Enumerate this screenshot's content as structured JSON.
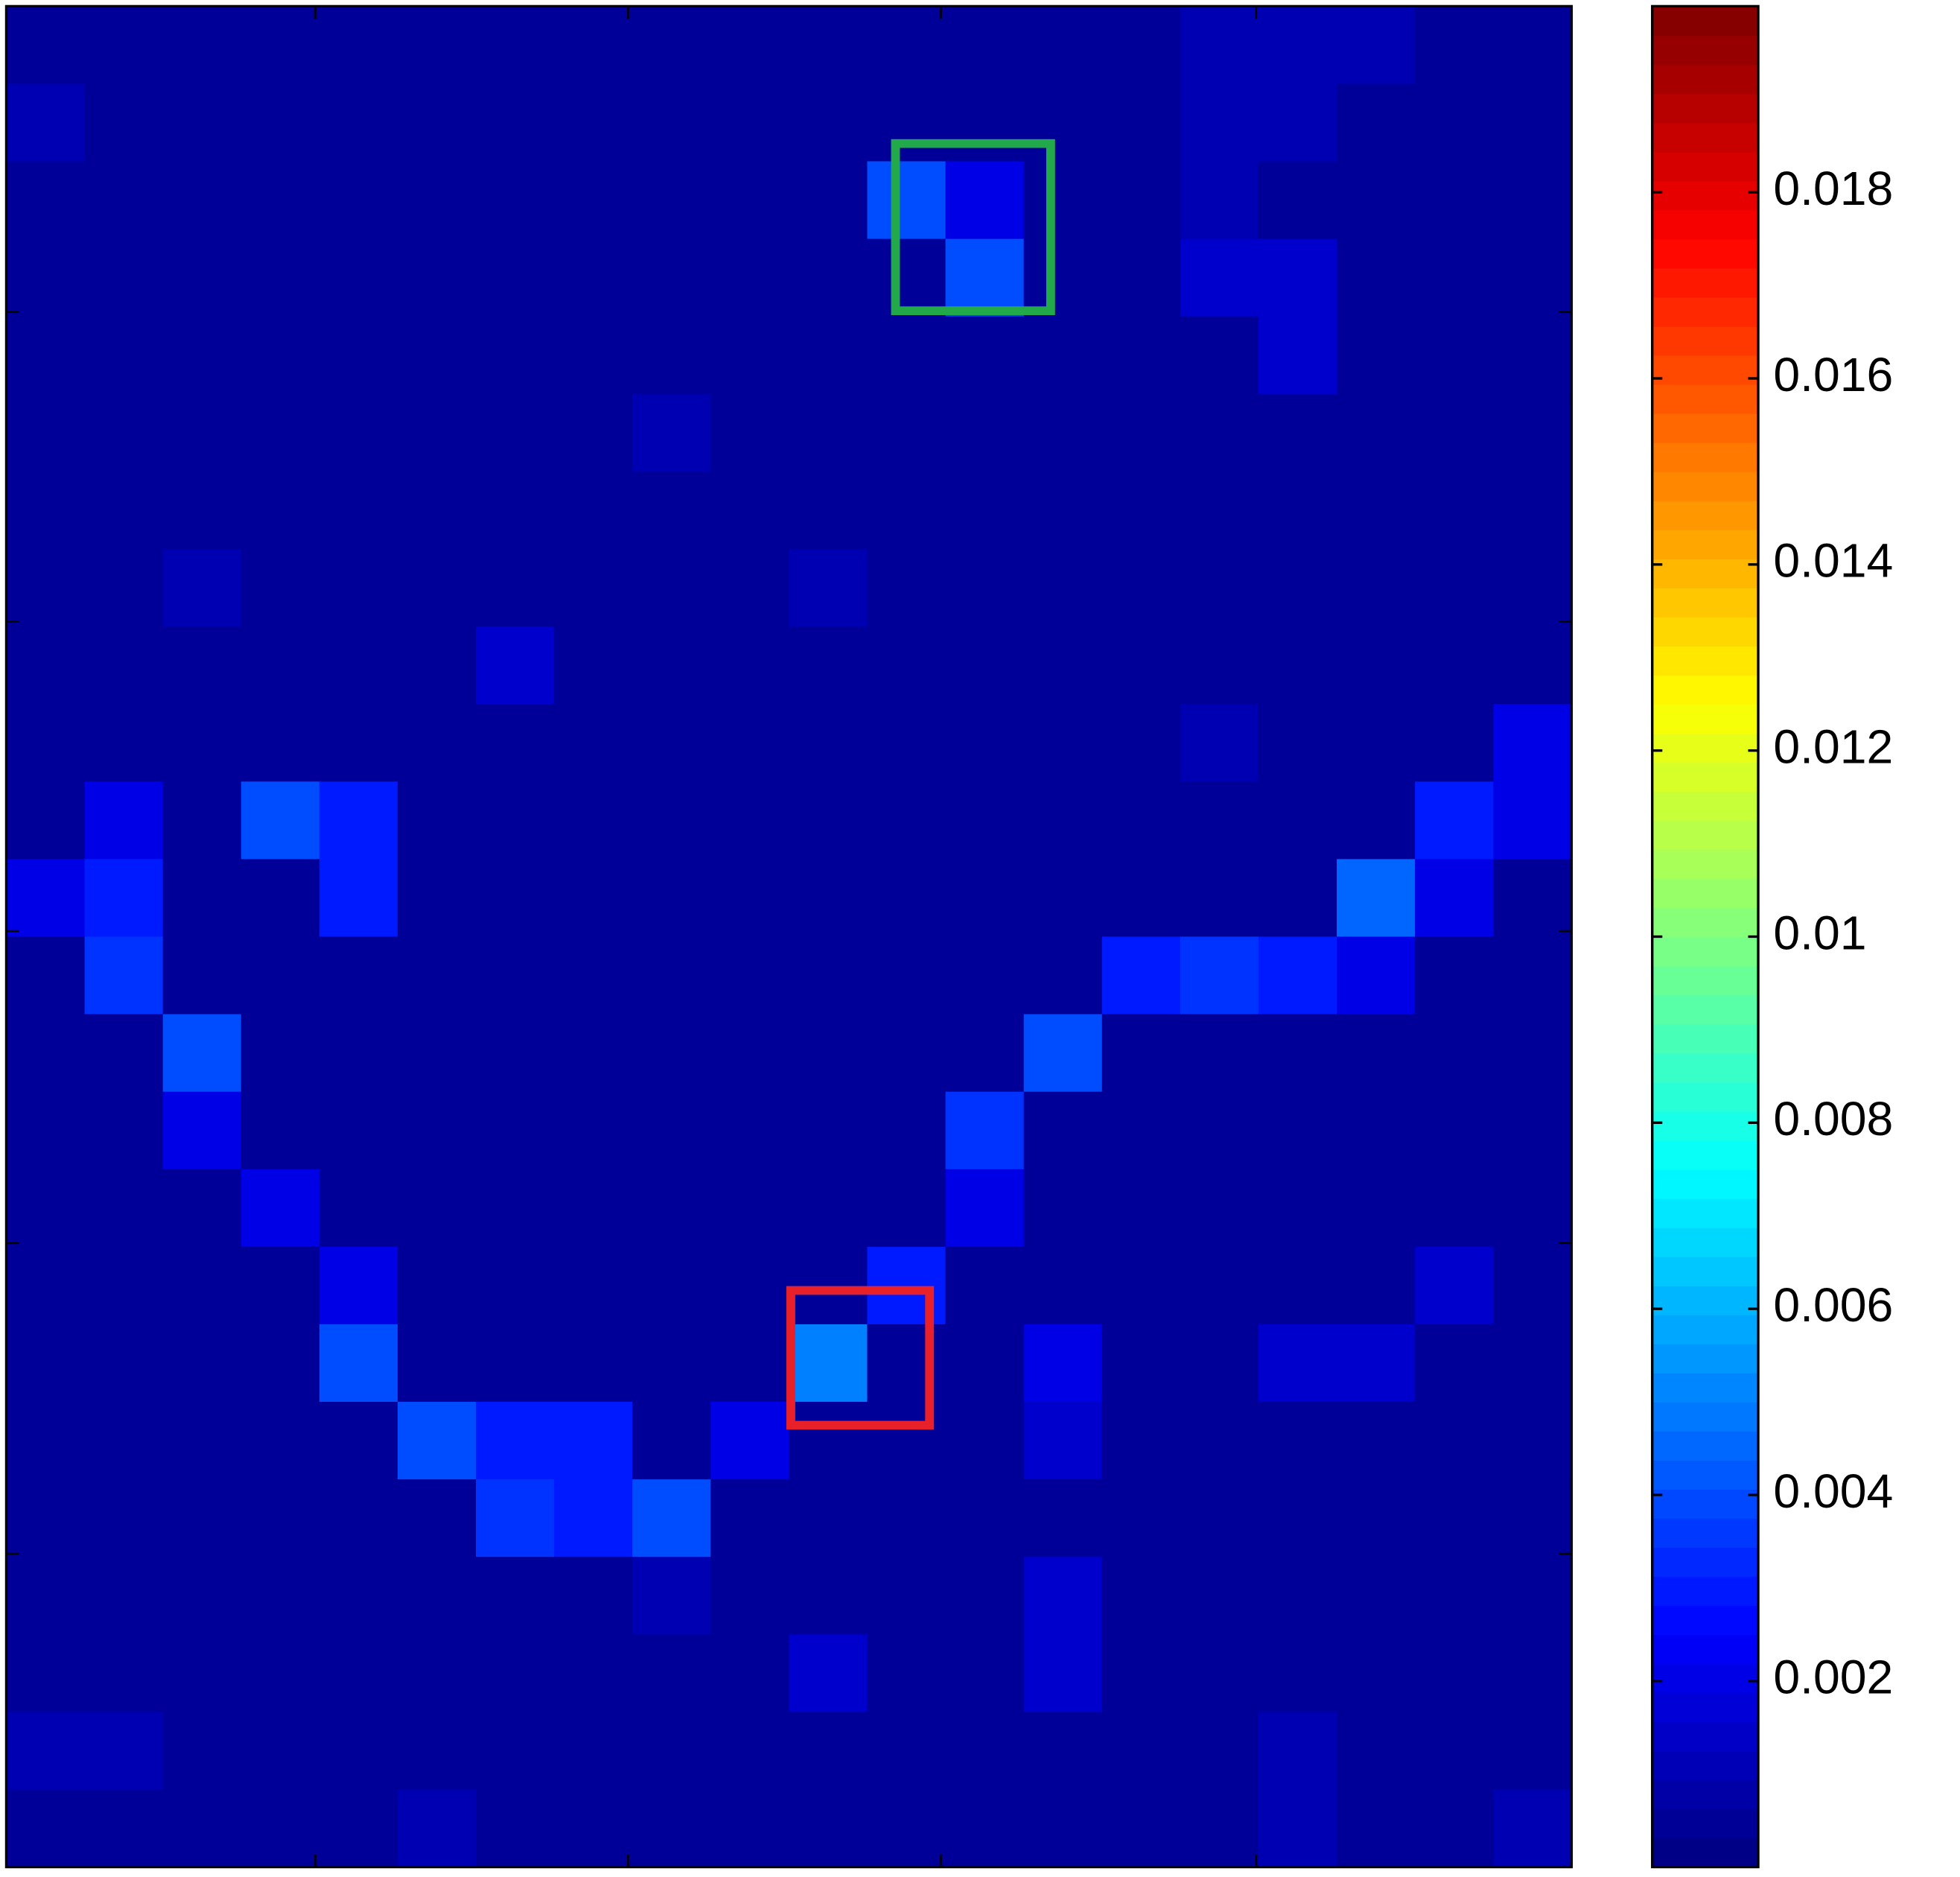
{
  "chart_data": {
    "type": "heatmap",
    "colormap": "jet",
    "clim": [
      0,
      0.02
    ],
    "colorbar_ticks": [
      0.002,
      0.004,
      0.006,
      0.008,
      0.01,
      0.012,
      0.014,
      0.016,
      0.018
    ],
    "z": [
      [
        0.0005,
        0.0005,
        0.0005,
        0.0005,
        0.0005,
        0.0005,
        0.0005,
        0.0005,
        0.0005,
        0.0005,
        0.0005,
        0.0005,
        0.0005,
        0.0005,
        0.0005,
        0.001,
        0.001,
        0.001,
        0.0005,
        0.0005
      ],
      [
        0.001,
        0.0005,
        0.0005,
        0.0005,
        0.0005,
        0.0005,
        0.0005,
        0.0005,
        0.0005,
        0.0005,
        0.0005,
        0.0005,
        0.0005,
        0.0005,
        0.0005,
        0.001,
        0.001,
        0.0005,
        0.0005,
        0.0005
      ],
      [
        0.0005,
        0.0005,
        0.0005,
        0.0005,
        0.0005,
        0.0005,
        0.0005,
        0.0005,
        0.0005,
        0.0005,
        0.0005,
        0.004,
        0.002,
        0.0005,
        0.0005,
        0.001,
        0.0005,
        0.0005,
        0.0005,
        0.0005
      ],
      [
        0.0005,
        0.0005,
        0.0005,
        0.0005,
        0.0005,
        0.0005,
        0.0005,
        0.0005,
        0.0005,
        0.0005,
        0.0005,
        0.0005,
        0.004,
        0.0005,
        0.0005,
        0.0015,
        0.0015,
        0.0005,
        0.0005,
        0.0005
      ],
      [
        0.0005,
        0.0005,
        0.0005,
        0.0005,
        0.0005,
        0.0005,
        0.0005,
        0.0005,
        0.0005,
        0.0005,
        0.0005,
        0.0005,
        0.0005,
        0.0005,
        0.0005,
        0.0005,
        0.0015,
        0.0005,
        0.0005,
        0.0005
      ],
      [
        0.0005,
        0.0005,
        0.0005,
        0.0005,
        0.0005,
        0.0005,
        0.0005,
        0.0005,
        0.001,
        0.0005,
        0.0005,
        0.0005,
        0.0005,
        0.0005,
        0.0005,
        0.0005,
        0.0005,
        0.0005,
        0.0005,
        0.0005
      ],
      [
        0.0005,
        0.0005,
        0.0005,
        0.0005,
        0.0005,
        0.0005,
        0.0005,
        0.0005,
        0.0005,
        0.0005,
        0.0005,
        0.0005,
        0.0005,
        0.0005,
        0.0005,
        0.0005,
        0.0005,
        0.0005,
        0.0005,
        0.0005
      ],
      [
        0.0005,
        0.0005,
        0.001,
        0.0005,
        0.0005,
        0.0005,
        0.0005,
        0.0005,
        0.0005,
        0.0005,
        0.001,
        0.0005,
        0.0005,
        0.0005,
        0.0005,
        0.0005,
        0.0005,
        0.0005,
        0.0005,
        0.0005
      ],
      [
        0.0005,
        0.0005,
        0.0005,
        0.0005,
        0.0005,
        0.0005,
        0.0015,
        0.0005,
        0.0005,
        0.0005,
        0.0005,
        0.0005,
        0.0005,
        0.0005,
        0.0005,
        0.0005,
        0.0005,
        0.0005,
        0.0005,
        0.0005
      ],
      [
        0.0005,
        0.0005,
        0.0005,
        0.0005,
        0.0005,
        0.0005,
        0.0005,
        0.0005,
        0.0005,
        0.0005,
        0.0005,
        0.0005,
        0.0005,
        0.0005,
        0.0005,
        0.001,
        0.0005,
        0.0005,
        0.0005,
        0.002
      ],
      [
        0.0005,
        0.002,
        0.0005,
        0.004,
        0.003,
        0.0005,
        0.0005,
        0.0005,
        0.0005,
        0.0005,
        0.0005,
        0.0005,
        0.0005,
        0.0005,
        0.0005,
        0.0005,
        0.0005,
        0.0005,
        0.003,
        0.002
      ],
      [
        0.002,
        0.003,
        0.0005,
        0.0005,
        0.003,
        0.0005,
        0.0005,
        0.0005,
        0.0005,
        0.0005,
        0.0005,
        0.0005,
        0.0005,
        0.0005,
        0.0005,
        0.0005,
        0.0005,
        0.0045,
        0.002,
        0.0005
      ],
      [
        0.0005,
        0.0035,
        0.0005,
        0.0005,
        0.0005,
        0.0005,
        0.0005,
        0.0005,
        0.0005,
        0.0005,
        0.0005,
        0.0005,
        0.0005,
        0.0005,
        0.003,
        0.0035,
        0.003,
        0.002,
        0.0005,
        0.0005
      ],
      [
        0.0005,
        0.0005,
        0.004,
        0.0005,
        0.0005,
        0.0005,
        0.0005,
        0.0005,
        0.0005,
        0.0005,
        0.0005,
        0.0005,
        0.0005,
        0.004,
        0.0005,
        0.0005,
        0.0005,
        0.0005,
        0.0005,
        0.0005
      ],
      [
        0.0005,
        0.0005,
        0.002,
        0.0005,
        0.0005,
        0.0005,
        0.0005,
        0.0005,
        0.0005,
        0.0005,
        0.0005,
        0.0005,
        0.0035,
        0.0005,
        0.0005,
        0.0005,
        0.0005,
        0.0005,
        0.0005,
        0.0005
      ],
      [
        0.0005,
        0.0005,
        0.0005,
        0.002,
        0.0005,
        0.0005,
        0.0005,
        0.0005,
        0.0005,
        0.0005,
        0.0005,
        0.0005,
        0.002,
        0.0005,
        0.0005,
        0.0005,
        0.0005,
        0.0005,
        0.0005,
        0.0005
      ],
      [
        0.0005,
        0.0005,
        0.0005,
        0.0005,
        0.002,
        0.0005,
        0.0005,
        0.0005,
        0.0005,
        0.0005,
        0.0005,
        0.003,
        0.0005,
        0.0005,
        0.0005,
        0.0005,
        0.0005,
        0.0005,
        0.0015,
        0.0005
      ],
      [
        0.0005,
        0.0005,
        0.0005,
        0.0005,
        0.004,
        0.0005,
        0.0005,
        0.0005,
        0.0005,
        0.0005,
        0.005,
        0.0005,
        0.0005,
        0.002,
        0.0005,
        0.0005,
        0.0015,
        0.0015,
        0.0005,
        0.0005
      ],
      [
        0.0005,
        0.0005,
        0.0005,
        0.0005,
        0.0005,
        0.004,
        0.003,
        0.003,
        0.0005,
        0.002,
        0.0005,
        0.0005,
        0.0005,
        0.0015,
        0.0005,
        0.0005,
        0.0005,
        0.0005,
        0.0005,
        0.0005
      ],
      [
        0.0005,
        0.0005,
        0.0005,
        0.0005,
        0.0005,
        0.0005,
        0.0035,
        0.003,
        0.004,
        0.0005,
        0.0005,
        0.0005,
        0.0005,
        0.0005,
        0.0005,
        0.0005,
        0.0005,
        0.0005,
        0.0005,
        0.0005
      ],
      [
        0.0005,
        0.0005,
        0.0005,
        0.0005,
        0.0005,
        0.0005,
        0.0005,
        0.0005,
        0.001,
        0.0005,
        0.0005,
        0.0005,
        0.0005,
        0.0015,
        0.0005,
        0.0005,
        0.0005,
        0.0005,
        0.0005,
        0.0005
      ],
      [
        0.0005,
        0.0005,
        0.0005,
        0.0005,
        0.0005,
        0.0005,
        0.0005,
        0.0005,
        0.0005,
        0.0005,
        0.0015,
        0.0005,
        0.0005,
        0.0015,
        0.0005,
        0.0005,
        0.0005,
        0.0005,
        0.0005,
        0.0005
      ],
      [
        0.001,
        0.001,
        0.0005,
        0.0005,
        0.0005,
        0.0005,
        0.0005,
        0.0005,
        0.0005,
        0.0005,
        0.0005,
        0.0005,
        0.0005,
        0.0005,
        0.0005,
        0.0005,
        0.001,
        0.0005,
        0.0005,
        0.0005
      ],
      [
        0.0005,
        0.0005,
        0.0005,
        0.0005,
        0.0005,
        0.001,
        0.0005,
        0.0005,
        0.0005,
        0.0005,
        0.0005,
        0.0005,
        0.0005,
        0.0005,
        0.0005,
        0.0005,
        0.001,
        0.0005,
        0.0005,
        0.001
      ]
    ]
  }
}
